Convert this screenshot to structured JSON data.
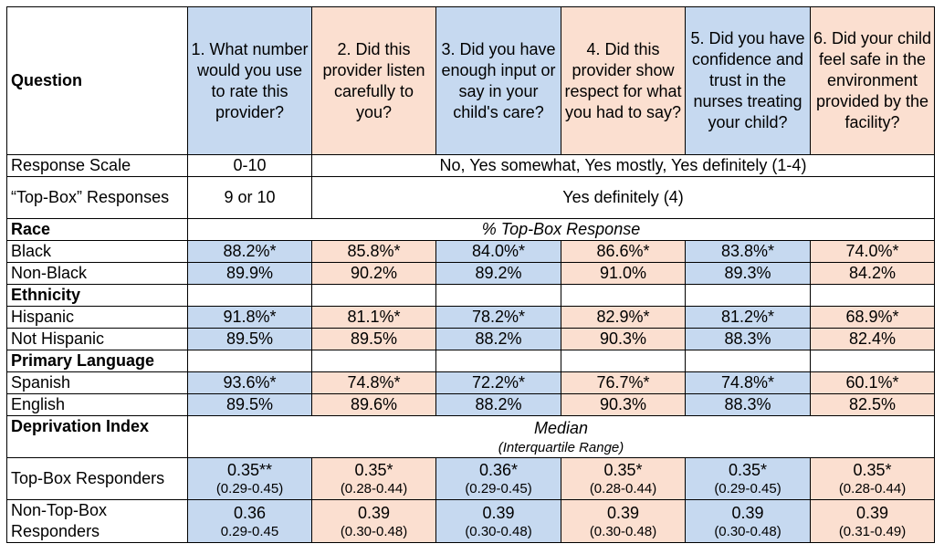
{
  "header": {
    "first": "Question",
    "questions": [
      "1. What number would you use to rate this provider?",
      "2. Did this provider listen carefully to you?",
      "3. Did you have enough input or say in your child's care?",
      "4. Did this provider show respect for what you had to say?",
      "5. Did you have confidence and trust in the nurses treating your child?",
      "6. Did your child feel safe in the environment provided by the facility?"
    ]
  },
  "scale_row": {
    "label": "Response Scale",
    "q1": "0-10",
    "rest": "No, Yes somewhat, Yes mostly, Yes definitely (1-4)"
  },
  "topbox_row": {
    "label": "“Top-Box” Responses",
    "q1": "9 or 10",
    "rest": "Yes definitely (4)"
  },
  "race": {
    "label": "Race",
    "caption": "% Top-Box Response",
    "rows": [
      {
        "label": "Black",
        "values": [
          "88.2%*",
          "85.8%*",
          "84.0%*",
          "86.6%*",
          "83.8%*",
          "74.0%*"
        ]
      },
      {
        "label": "Non-Black",
        "values": [
          "89.9%",
          "90.2%",
          "89.2%",
          "91.0%",
          "89.3%",
          "84.2%"
        ]
      }
    ]
  },
  "ethnicity": {
    "label": "Ethnicity",
    "rows": [
      {
        "label": "Hispanic",
        "values": [
          "91.8%*",
          "81.1%*",
          "78.2%*",
          "82.9%*",
          "81.2%*",
          "68.9%*"
        ]
      },
      {
        "label": "Not Hispanic",
        "values": [
          "89.5%",
          "89.5%",
          "88.2%",
          "90.3%",
          "88.3%",
          "82.4%"
        ]
      }
    ]
  },
  "language": {
    "label": "Primary Language",
    "rows": [
      {
        "label": "Spanish",
        "values": [
          "93.6%*",
          "74.8%*",
          "72.2%*",
          "76.7%*",
          "74.8%*",
          "60.1%*"
        ]
      },
      {
        "label": "English",
        "values": [
          "89.5%",
          "89.6%",
          "88.2%",
          "90.3%",
          "88.3%",
          "82.5%"
        ]
      }
    ]
  },
  "deprivation": {
    "label": "Deprivation Index",
    "caption_main": "Median",
    "caption_sub": "(Interquartile Range)",
    "rows": [
      {
        "label": "Top-Box Responders",
        "values": [
          "0.35**",
          "0.35*",
          "0.36*",
          "0.35*",
          "0.35*",
          "0.35*"
        ],
        "ranges": [
          "(0.29-0.45)",
          "(0.28-0.44)",
          "(0.29-0.45)",
          "(0.28-0.44)",
          "(0.29-0.45)",
          "(0.28-0.44)"
        ]
      },
      {
        "label": "Non-Top-Box Responders",
        "values": [
          "0.36",
          "0.39",
          "0.39",
          "0.39",
          "0.39",
          "0.39"
        ],
        "ranges": [
          "0.29-0.45",
          "(0.30-0.48)",
          "(0.30-0.48)",
          "(0.30-0.48)",
          "(0.30-0.48)",
          "(0.31-0.49)"
        ]
      }
    ]
  },
  "colors": {
    "blue": "#c6d9f0",
    "peach": "#fbdfd0"
  }
}
